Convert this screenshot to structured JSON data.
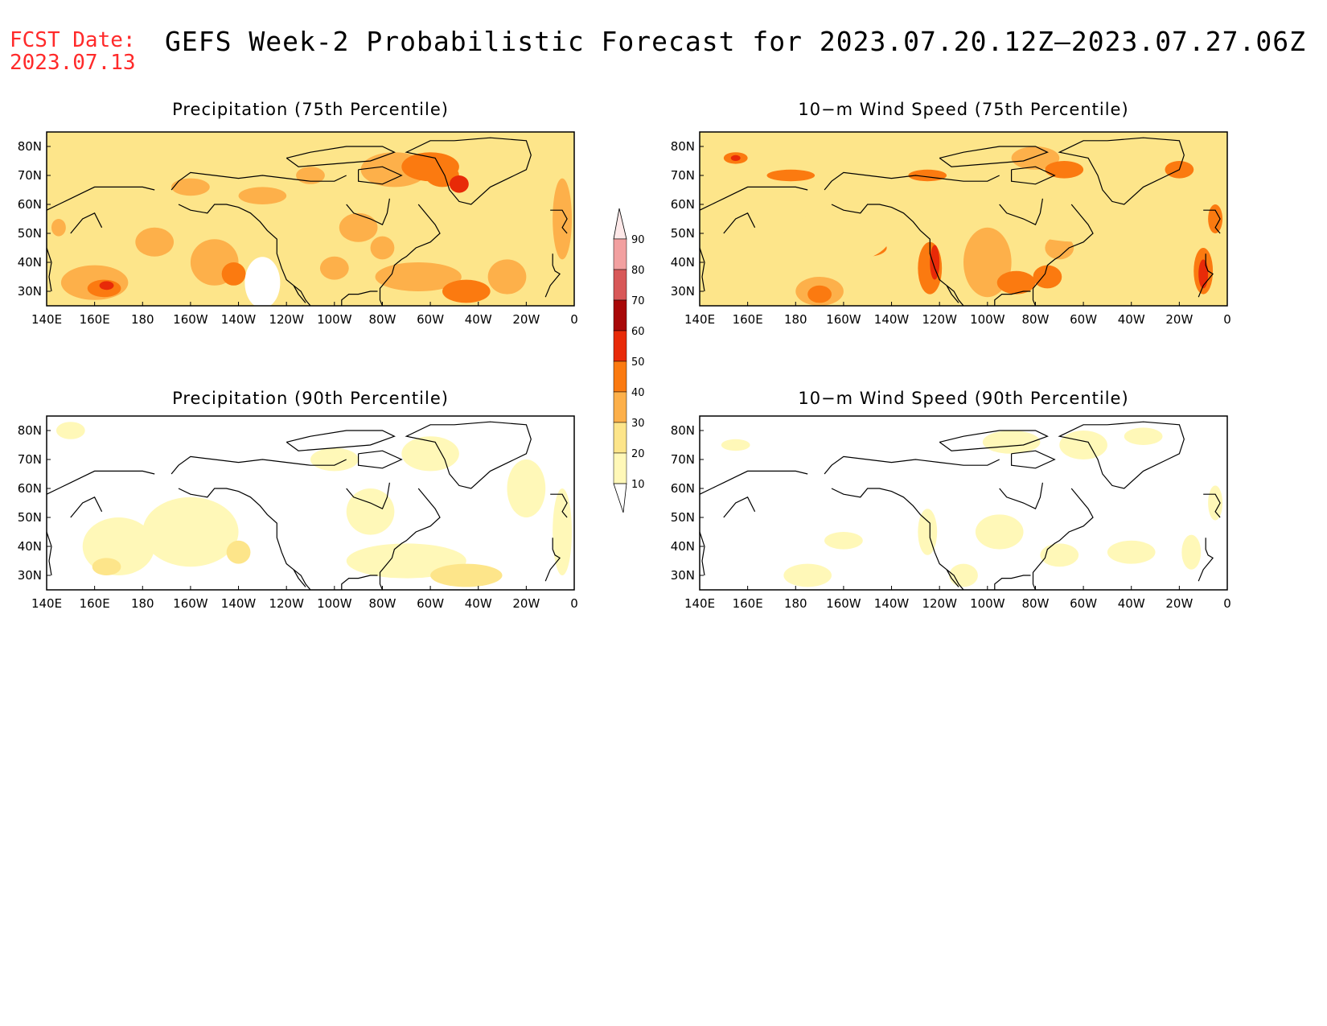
{
  "header": {
    "fcst_label": "FCST Date:",
    "fcst_date": "2023.07.13",
    "title": "GEFS Week-2 Probabilistic Forecast for 2023.07.20.12Z–2023.07.27.06Z"
  },
  "colors": {
    "text_accent": "#ff2a2a",
    "levels": [
      "#fff8b8",
      "#fde58a",
      "#fdb04a",
      "#fb7a10",
      "#e82a08",
      "#a80808",
      "#d85858",
      "#f2a0a0"
    ]
  },
  "colorbar": {
    "levels": [
      "10",
      "20",
      "30",
      "40",
      "50",
      "60",
      "70",
      "80",
      "90"
    ]
  },
  "axes": {
    "x_ticks": [
      "140E",
      "160E",
      "180",
      "160W",
      "140W",
      "120W",
      "100W",
      "80W",
      "60W",
      "40W",
      "20W",
      "0"
    ],
    "y_ticks": [
      "80N",
      "70N",
      "60N",
      "50N",
      "40N",
      "30N"
    ]
  },
  "panels": [
    {
      "id": "precip-75",
      "title": "Precipitation (75th Percentile)"
    },
    {
      "id": "wind-75",
      "title": "10−m Wind Speed (75th Percentile)"
    },
    {
      "id": "precip-90",
      "title": "Precipitation (90th Percentile)"
    },
    {
      "id": "wind-90",
      "title": "10−m Wind Speed (90th Percentile)"
    }
  ]
}
